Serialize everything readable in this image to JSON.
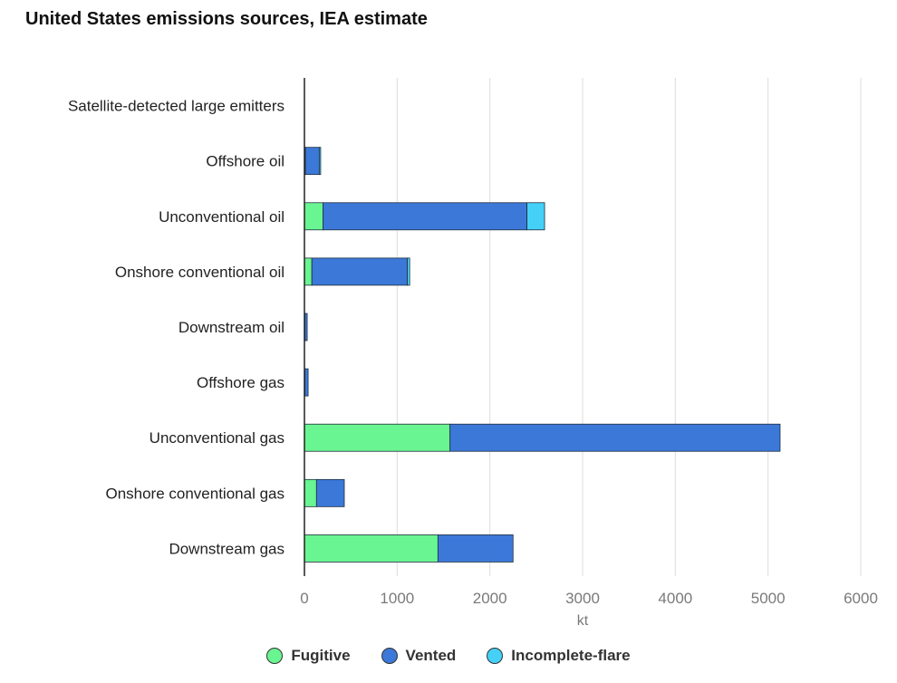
{
  "title": "United States emissions sources, IEA estimate",
  "colors": {
    "Fugitive": "#69f591",
    "Vented": "#3c78d8",
    "Incomplete-flare": "#45d0f7",
    "grid": "#dcdcdc",
    "axis": "#222222"
  },
  "chart_data": {
    "type": "bar",
    "orientation": "horizontal",
    "stacked": true,
    "title": "United States emissions sources, IEA estimate",
    "xlabel": "kt",
    "ylabel": "",
    "xlim": [
      0,
      6000
    ],
    "xticks": [
      "0",
      "1000",
      "2000",
      "3000",
      "4000",
      "5000",
      "6000"
    ],
    "grid": "vertical",
    "legend_position": "bottom",
    "categories": [
      "Satellite-detected large emitters",
      "Offshore oil",
      "Unconventional oil",
      "Onshore conventional oil",
      "Downstream oil",
      "Offshore gas",
      "Unconventional gas",
      "Onshore conventional gas",
      "Downstream gas"
    ],
    "series": [
      {
        "name": "Fugitive",
        "values": [
          0,
          10,
          200,
          80,
          5,
          5,
          1570,
          130,
          1440
        ]
      },
      {
        "name": "Vented",
        "values": [
          0,
          150,
          2200,
          1030,
          25,
          35,
          3560,
          300,
          810
        ]
      },
      {
        "name": "Incomplete-flare",
        "values": [
          0,
          15,
          190,
          25,
          0,
          0,
          0,
          0,
          0
        ]
      }
    ]
  },
  "legend": [
    {
      "label": "Fugitive",
      "color": "#69f591"
    },
    {
      "label": "Vented",
      "color": "#3c78d8"
    },
    {
      "label": "Incomplete-flare",
      "color": "#45d0f7"
    }
  ]
}
